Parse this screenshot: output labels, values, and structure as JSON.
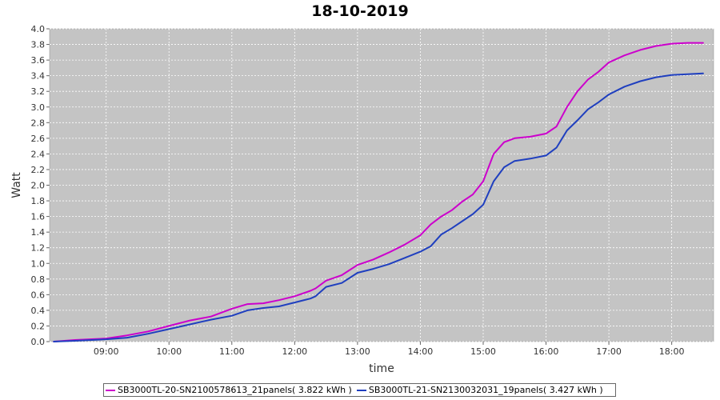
{
  "chart_data": {
    "type": "line",
    "title": "18-10-2019",
    "xlabel": "time",
    "ylabel": "Watt",
    "xlim": [
      "08:06",
      "18:40"
    ],
    "ylim": [
      0,
      4.0
    ],
    "x_ticks": [
      "09:00",
      "10:00",
      "11:00",
      "12:00",
      "13:00",
      "14:00",
      "15:00",
      "16:00",
      "17:00",
      "18:00"
    ],
    "y_ticks": [
      "0.0",
      "0.2",
      "0.4",
      "0.6",
      "0.8",
      "1.0",
      "1.2",
      "1.4",
      "1.6",
      "1.8",
      "2.0",
      "2.2",
      "2.4",
      "2.6",
      "2.8",
      "3.0",
      "3.2",
      "3.4",
      "3.6",
      "3.8",
      "4.0"
    ],
    "grid": true,
    "legend_position": "bottom",
    "x": [
      "08:10",
      "08:30",
      "09:00",
      "09:20",
      "09:40",
      "10:00",
      "10:20",
      "10:40",
      "11:00",
      "11:15",
      "11:30",
      "11:45",
      "12:00",
      "12:15",
      "12:20",
      "12:30",
      "12:45",
      "13:00",
      "13:15",
      "13:30",
      "13:45",
      "14:00",
      "14:10",
      "14:20",
      "14:30",
      "14:40",
      "14:50",
      "15:00",
      "15:10",
      "15:20",
      "15:30",
      "15:45",
      "16:00",
      "16:10",
      "16:20",
      "16:30",
      "16:40",
      "16:50",
      "17:00",
      "17:15",
      "17:30",
      "17:45",
      "18:00",
      "18:15",
      "18:30"
    ],
    "series": [
      {
        "name": "SB3000TL-20-SN2100578613_21panels( 3.822 kWh )",
        "color": "#cc00cc",
        "values": [
          0.0,
          0.02,
          0.04,
          0.08,
          0.13,
          0.2,
          0.27,
          0.32,
          0.42,
          0.48,
          0.49,
          0.53,
          0.58,
          0.65,
          0.68,
          0.78,
          0.85,
          0.98,
          1.05,
          1.14,
          1.24,
          1.36,
          1.5,
          1.6,
          1.68,
          1.79,
          1.88,
          2.05,
          2.4,
          2.55,
          2.6,
          2.62,
          2.66,
          2.75,
          3.0,
          3.2,
          3.35,
          3.45,
          3.57,
          3.66,
          3.73,
          3.78,
          3.81,
          3.82,
          3.82
        ]
      },
      {
        "name": "SB3000TL-21-SN2130032031_19panels( 3.427 kWh )",
        "color": "#1f3fbf",
        "values": [
          0.0,
          0.01,
          0.03,
          0.05,
          0.1,
          0.16,
          0.22,
          0.28,
          0.33,
          0.4,
          0.43,
          0.45,
          0.5,
          0.55,
          0.58,
          0.7,
          0.75,
          0.88,
          0.93,
          0.99,
          1.07,
          1.15,
          1.22,
          1.37,
          1.45,
          1.54,
          1.63,
          1.75,
          2.05,
          2.23,
          2.31,
          2.34,
          2.38,
          2.48,
          2.7,
          2.83,
          2.97,
          3.06,
          3.16,
          3.26,
          3.33,
          3.38,
          3.41,
          3.42,
          3.43
        ]
      }
    ]
  }
}
